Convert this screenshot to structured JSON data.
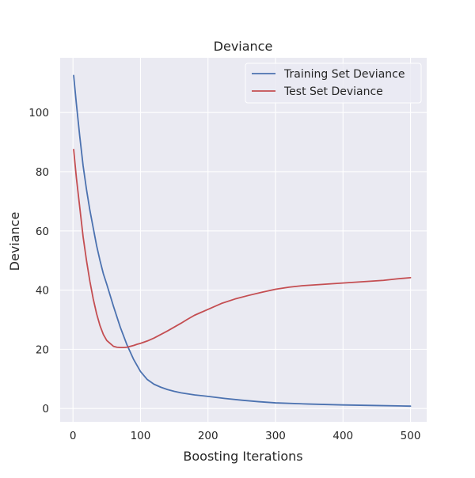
{
  "chart_data": {
    "type": "line",
    "title": "Deviance",
    "xlabel": "Boosting Iterations",
    "ylabel": "Deviance",
    "xlim": [
      -19,
      524
    ],
    "ylim": [
      -4.5,
      118.5
    ],
    "xticks": [
      0,
      100,
      200,
      300,
      400,
      500
    ],
    "yticks": [
      0,
      20,
      40,
      60,
      80,
      100
    ],
    "xtick_labels": [
      "0",
      "100",
      "200",
      "300",
      "400",
      "500"
    ],
    "ytick_labels": [
      "0",
      "20",
      "40",
      "60",
      "80",
      "100"
    ],
    "grid": true,
    "legend": "top-right",
    "background": "#eaeaf2",
    "series": [
      {
        "name": "Training Set Deviance",
        "color": "#4c72b0",
        "x": [
          1,
          5,
          10,
          15,
          20,
          25,
          30,
          35,
          40,
          45,
          50,
          60,
          70,
          80,
          90,
          100,
          110,
          120,
          130,
          140,
          150,
          160,
          180,
          200,
          225,
          250,
          275,
          300,
          350,
          400,
          450,
          500
        ],
        "y": [
          112.5,
          103,
          92,
          82,
          74,
          67,
          61,
          55,
          50,
          45.5,
          42,
          34.5,
          27.5,
          21.5,
          16.5,
          12.5,
          9.8,
          8.2,
          7.2,
          6.4,
          5.8,
          5.3,
          4.6,
          4.1,
          3.4,
          2.8,
          2.3,
          1.9,
          1.5,
          1.2,
          1.0,
          0.8
        ]
      },
      {
        "name": "Test Set Deviance",
        "color": "#c44e52",
        "x": [
          1,
          5,
          10,
          15,
          20,
          25,
          30,
          35,
          40,
          45,
          50,
          55,
          60,
          65,
          70,
          75,
          80,
          85,
          90,
          95,
          100,
          110,
          120,
          130,
          140,
          150,
          160,
          170,
          180,
          190,
          200,
          220,
          240,
          260,
          280,
          300,
          320,
          340,
          360,
          380,
          400,
          420,
          440,
          460,
          480,
          500
        ],
        "y": [
          87.5,
          78,
          68,
          58,
          50,
          43,
          37,
          32,
          28,
          25,
          23,
          22,
          21,
          20.7,
          20.6,
          20.6,
          20.7,
          21,
          21.3,
          21.7,
          22,
          22.8,
          23.8,
          25,
          26.2,
          27.5,
          28.8,
          30.2,
          31.5,
          32.5,
          33.5,
          35.5,
          37,
          38.2,
          39.3,
          40.3,
          41,
          41.5,
          41.8,
          42.1,
          42.4,
          42.7,
          43,
          43.3,
          43.8,
          44.2
        ]
      }
    ]
  }
}
